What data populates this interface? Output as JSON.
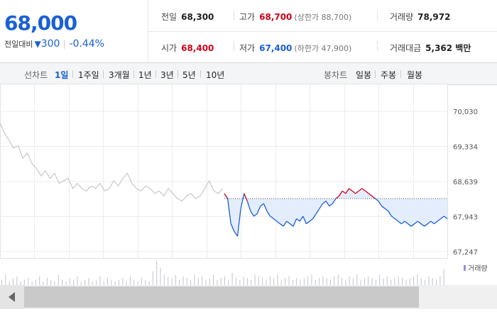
{
  "summary": {
    "price": "68,000",
    "change_label": "전일대비",
    "change_arrow": "▼",
    "change_value": "300",
    "change_rate": "-0.44%"
  },
  "info": {
    "prev_label": "전일",
    "prev_value": "68,300",
    "high_label": "고가",
    "high_value": "68,700",
    "upper_limit": "(상한가 88,700)",
    "volume_label": "거래량",
    "volume_value": "78,972",
    "open_label": "시가",
    "open_value": "68,400",
    "low_label": "저가",
    "low_value": "67,400",
    "lower_limit": "(하한가 47,900)",
    "amount_label": "거래대금",
    "amount_value": "5,362 백만"
  },
  "tabs": {
    "line_label": "선차트",
    "line_tabs": [
      "1일",
      "1주일",
      "3개월",
      "1년",
      "3년",
      "5년",
      "10년"
    ],
    "candle_label": "봉차트",
    "candle_tabs": [
      "일봉",
      "주봉",
      "월봉"
    ]
  },
  "colors": {
    "up": "#d0021b",
    "down": "#1a5fd6",
    "prev_day_line": "#c8c8c8",
    "fill": "#e3edfb"
  },
  "chart_data": {
    "type": "line",
    "y_ticks": [
      "70,030",
      "69,334",
      "68,639",
      "67,943",
      "67,247"
    ],
    "ylim": [
      67247,
      70030
    ],
    "reference_price": 68300,
    "grid": true,
    "volume_legend": "거래량",
    "series": [
      {
        "values": [
          69800,
          69600,
          69450,
          69300,
          69350,
          69100,
          69200,
          69000,
          68900,
          68750,
          68850,
          68700,
          68800,
          68600,
          68650,
          68700,
          68500,
          68600,
          68500,
          68450,
          68550,
          68500,
          68600,
          68450,
          68500,
          68650,
          68550,
          68700,
          68800,
          68600,
          68500,
          68450,
          68550,
          68500,
          68400,
          68450,
          68350,
          68500,
          68400,
          68300,
          68250,
          68350,
          68400,
          68300,
          68350,
          68500,
          68650,
          68450,
          68400,
          68500
        ]
      },
      {
        "values": [
          68400,
          68300,
          67800,
          67650,
          67550,
          68100,
          68400,
          68250,
          68050,
          67950,
          68000,
          68150,
          68200,
          68050,
          67950,
          67900,
          67850,
          67800,
          67750,
          67850,
          67800,
          67750,
          67900,
          67850,
          67950,
          67800,
          67850,
          67900,
          68000,
          68100,
          68200,
          68250,
          68150,
          68200,
          68300,
          68350,
          68450,
          68400,
          68500,
          68450,
          68400,
          68450,
          68500,
          68450,
          68400,
          68350,
          68300,
          68250,
          68150,
          68100,
          68050,
          67950,
          67900,
          67850,
          67800,
          67850,
          67800,
          67750,
          67800,
          67850,
          67800,
          67750,
          67800,
          67850,
          67800,
          67850,
          67900,
          67950,
          67900
        ]
      }
    ],
    "volumes": [
      3,
      6,
      2,
      4,
      5,
      2,
      3,
      4,
      2,
      3,
      5,
      2,
      4,
      3,
      2,
      6,
      3,
      2,
      4,
      3,
      5,
      2,
      3,
      4,
      2,
      3,
      5,
      2,
      4,
      3,
      2,
      3,
      4,
      2,
      5,
      3,
      2,
      4,
      3,
      2,
      8,
      14,
      10,
      6,
      5,
      4,
      6,
      3,
      5,
      4,
      3,
      6,
      4,
      5,
      3,
      4,
      6,
      3,
      4,
      5,
      3,
      7,
      4,
      3,
      5,
      4,
      3,
      6,
      5,
      4,
      3,
      5,
      4,
      6,
      3,
      4,
      5,
      3,
      4,
      3,
      4,
      5,
      6,
      3,
      4,
      5,
      4,
      3,
      5,
      6,
      4,
      3,
      5,
      4,
      6,
      3,
      4,
      5,
      4,
      3,
      6,
      4,
      5,
      3,
      4,
      5,
      4,
      3,
      4,
      5,
      6,
      4,
      3,
      5,
      4,
      3,
      5,
      9
    ]
  }
}
